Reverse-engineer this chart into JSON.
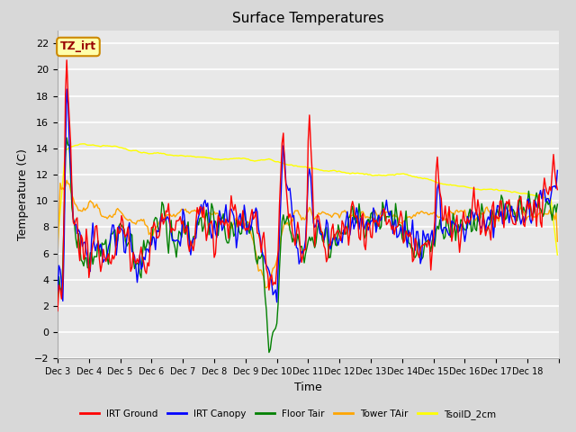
{
  "title": "Surface Temperatures",
  "xlabel": "Time",
  "ylabel": "Temperature (C)",
  "ylim": [
    -2,
    23
  ],
  "yticks": [
    -2,
    0,
    2,
    4,
    6,
    8,
    10,
    12,
    14,
    16,
    18,
    20,
    22
  ],
  "xtick_positions": [
    0,
    24,
    48,
    72,
    96,
    120,
    144,
    168,
    192,
    216,
    240,
    264,
    288,
    312,
    336,
    360,
    384
  ],
  "xtick_labels": [
    "Dec 3",
    "Dec 4",
    "Dec 5",
    "Dec 6",
    "Dec 7",
    "Dec 8",
    "Dec 9",
    "Dec 10",
    "Dec 11",
    "Dec 12",
    "Dec 13",
    "Dec 14",
    "Dec 15",
    "Dec 16",
    "Dec 17",
    "Dec 18",
    ""
  ],
  "series_colors": [
    "red",
    "blue",
    "green",
    "orange",
    "yellow"
  ],
  "series_labels": [
    "IRT Ground",
    "IRT Canopy",
    "Floor Tair",
    "Tower TAir",
    "TsoilD_2cm"
  ],
  "background_color": "#d8d8d8",
  "plot_bg_color": "#e8e8e8",
  "annotation_text": "TZ_irt",
  "annotation_color": "#990000",
  "annotation_bg": "#ffffaa",
  "annotation_edge": "#cc8800"
}
